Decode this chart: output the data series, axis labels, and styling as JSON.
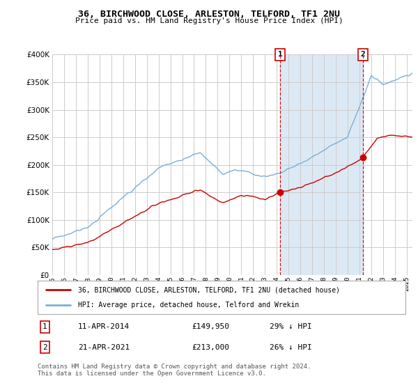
{
  "title": "36, BIRCHWOOD CLOSE, ARLESTON, TELFORD, TF1 2NU",
  "subtitle": "Price paid vs. HM Land Registry's House Price Index (HPI)",
  "legend_line1": "36, BIRCHWOOD CLOSE, ARLESTON, TELFORD, TF1 2NU (detached house)",
  "legend_line2": "HPI: Average price, detached house, Telford and Wrekin",
  "footnote": "Contains HM Land Registry data © Crown copyright and database right 2024.\nThis data is licensed under the Open Government Licence v3.0.",
  "sale1_date": "11-APR-2014",
  "sale1_price": "£149,950",
  "sale1_hpi": "29% ↓ HPI",
  "sale2_date": "21-APR-2021",
  "sale2_price": "£213,000",
  "sale2_hpi": "26% ↓ HPI",
  "sale1_year": 2014.28,
  "sale1_value": 149950,
  "sale2_year": 2021.31,
  "sale2_value": 213000,
  "ylim_max": 400000,
  "xlim_start": 1995,
  "xlim_end": 2025.5,
  "red_color": "#cc0000",
  "blue_color": "#7bafd4",
  "shade_color": "#dce9f5",
  "grid_color": "#cccccc",
  "bg_color": "#ffffff"
}
